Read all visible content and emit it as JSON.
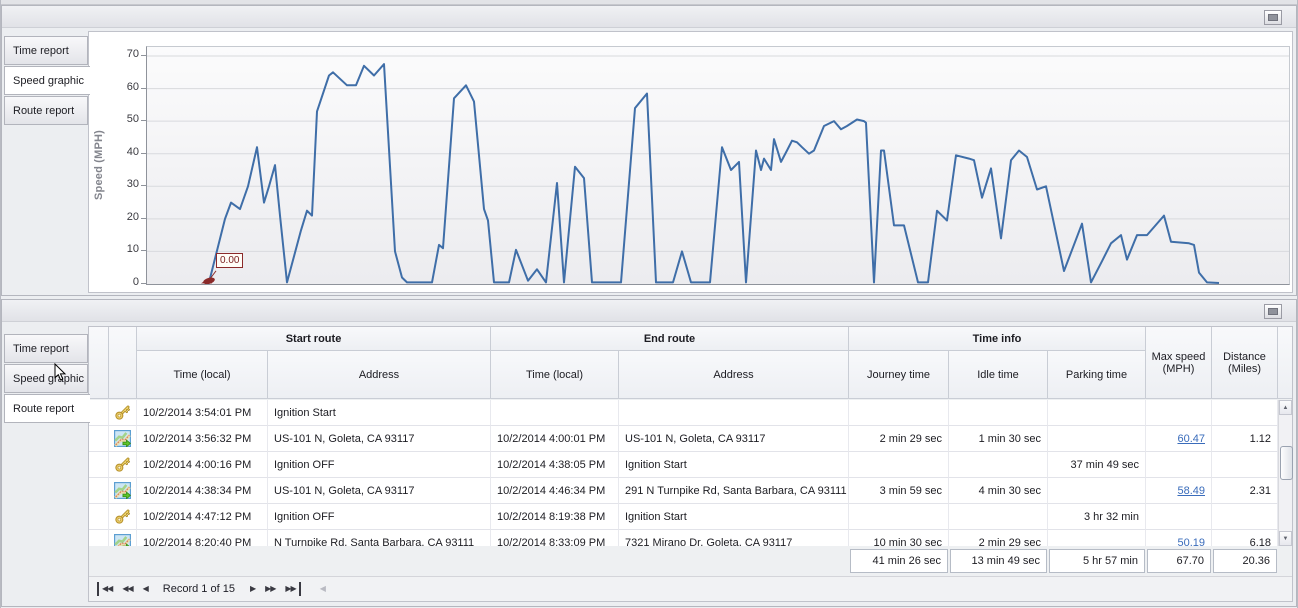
{
  "colors": {
    "line": "#3f6ea8",
    "annotation_red": "#8b2a2a",
    "link_blue": "#3a6cbb",
    "grid": "#d8d9dd",
    "panel_bg": "#eceef1"
  },
  "top_panel": {
    "tabs": [
      {
        "label": "Time report",
        "active": false
      },
      {
        "label": "Speed graphic",
        "active": true
      },
      {
        "label": "Route report",
        "active": false
      }
    ]
  },
  "bottom_panel": {
    "tabs": [
      {
        "label": "Time report",
        "active": false
      },
      {
        "label": "Speed graphic",
        "active": false
      },
      {
        "label": "Route report",
        "active": true
      }
    ]
  },
  "chart_data": {
    "type": "line",
    "title": "",
    "xlabel": "",
    "ylabel": "Speed (MPH)",
    "yticks": [
      0,
      10,
      20,
      30,
      40,
      50,
      60,
      70
    ],
    "ylim": [
      0,
      72.8
    ],
    "x_ticks_visible": false,
    "grid": true,
    "legend": false,
    "line_color": "#3f6ea8",
    "annotation": {
      "text": "0.00",
      "color": "#8b2a2a",
      "at_first_point": true
    },
    "points": [
      [
        62,
        0.5
      ],
      [
        78,
        20
      ],
      [
        84,
        25
      ],
      [
        93,
        23
      ],
      [
        101,
        30
      ],
      [
        110,
        42
      ],
      [
        117,
        25
      ],
      [
        122,
        30
      ],
      [
        128,
        36.5
      ],
      [
        133,
        21
      ],
      [
        140,
        0.5
      ],
      [
        154,
        16.5
      ],
      [
        160,
        22.5
      ],
      [
        165,
        21
      ],
      [
        170,
        53
      ],
      [
        182,
        64
      ],
      [
        186,
        65
      ],
      [
        200,
        61
      ],
      [
        209,
        61
      ],
      [
        217,
        67
      ],
      [
        227,
        64
      ],
      [
        237,
        67.5
      ],
      [
        248,
        10
      ],
      [
        255,
        2
      ],
      [
        260,
        0.5
      ],
      [
        285,
        0.5
      ],
      [
        292,
        12
      ],
      [
        296,
        11
      ],
      [
        307,
        57
      ],
      [
        319,
        61
      ],
      [
        327,
        56
      ],
      [
        337,
        23
      ],
      [
        341,
        19.5
      ],
      [
        347,
        0.5
      ],
      [
        362,
        0.5
      ],
      [
        369,
        10.5
      ],
      [
        381,
        1
      ],
      [
        390,
        4.5
      ],
      [
        399,
        0.5
      ],
      [
        410,
        31
      ],
      [
        417,
        0.5
      ],
      [
        428,
        36
      ],
      [
        437,
        32.5
      ],
      [
        445,
        0.5
      ],
      [
        474,
        0.5
      ],
      [
        488,
        54
      ],
      [
        500,
        58.5
      ],
      [
        509,
        0.5
      ],
      [
        526,
        0.5
      ],
      [
        535,
        10
      ],
      [
        544,
        0.5
      ],
      [
        563,
        0.5
      ],
      [
        575,
        42
      ],
      [
        584,
        35
      ],
      [
        592,
        37.5
      ],
      [
        599,
        0.5
      ],
      [
        609,
        41
      ],
      [
        614,
        35
      ],
      [
        617,
        38.5
      ],
      [
        624,
        35
      ],
      [
        627,
        44.5
      ],
      [
        634,
        37.5
      ],
      [
        640,
        41
      ],
      [
        645,
        44
      ],
      [
        650,
        43.5
      ],
      [
        655,
        42
      ],
      [
        662,
        40
      ],
      [
        667,
        41
      ],
      [
        677,
        48.5
      ],
      [
        687,
        50
      ],
      [
        694,
        47.5
      ],
      [
        700,
        48.5
      ],
      [
        710,
        50.5
      ],
      [
        717,
        50
      ],
      [
        719,
        49.5
      ],
      [
        727,
        0.5
      ],
      [
        734,
        41
      ],
      [
        737,
        41
      ],
      [
        747,
        18
      ],
      [
        757,
        18
      ],
      [
        771,
        0.5
      ],
      [
        781,
        0.5
      ],
      [
        790,
        22.5
      ],
      [
        800,
        19.5
      ],
      [
        809,
        39.5
      ],
      [
        822,
        38.5
      ],
      [
        827,
        38
      ],
      [
        835,
        26.5
      ],
      [
        844,
        35.5
      ],
      [
        854,
        14
      ],
      [
        864,
        38
      ],
      [
        872,
        41
      ],
      [
        880,
        39
      ],
      [
        890,
        29
      ],
      [
        899,
        30
      ],
      [
        917,
        4
      ],
      [
        935,
        18.5
      ],
      [
        944,
        0.5
      ],
      [
        955,
        7
      ],
      [
        964,
        12.5
      ],
      [
        974,
        15
      ],
      [
        980,
        7.5
      ],
      [
        990,
        15
      ],
      [
        1000,
        15
      ],
      [
        1017,
        21
      ],
      [
        1024,
        13
      ],
      [
        1042,
        12.5
      ],
      [
        1047,
        12
      ],
      [
        1052,
        3.5
      ],
      [
        1060,
        0.5
      ],
      [
        1072,
        0.3
      ]
    ]
  },
  "table": {
    "group_headers": {
      "start": "Start route",
      "end": "End route",
      "time_info": "Time info"
    },
    "columns": {
      "start_time": "Time (local)",
      "start_address": "Address",
      "end_time": "Time (local)",
      "end_address": "Address",
      "journey": "Journey time",
      "idle": "Idle time",
      "parking": "Parking time",
      "max_speed": "Max speed (MPH)",
      "distance": "Distance (Miles)"
    },
    "rows": [
      {
        "icon": "key",
        "start_time": "10/2/2014 3:54:01 PM",
        "start_address": "Ignition Start",
        "end_time": "",
        "end_address": "",
        "journey": "",
        "idle": "",
        "parking": "",
        "max_speed": "",
        "max_speed_link": false,
        "distance": ""
      },
      {
        "icon": "route",
        "start_time": "10/2/2014 3:56:32 PM",
        "start_address": "US-101 N, Goleta, CA 93117",
        "end_time": "10/2/2014 4:00:01 PM",
        "end_address": "US-101 N, Goleta, CA 93117",
        "journey": "2 min 29 sec",
        "idle": "1 min 30 sec",
        "parking": "",
        "max_speed": "60.47",
        "max_speed_link": true,
        "distance": "1.12"
      },
      {
        "icon": "key",
        "start_time": "10/2/2014 4:00:16 PM",
        "start_address": "Ignition OFF",
        "end_time": "10/2/2014 4:38:05 PM",
        "end_address": "Ignition Start",
        "journey": "",
        "idle": "",
        "parking": "37 min 49 sec",
        "max_speed": "",
        "max_speed_link": false,
        "distance": ""
      },
      {
        "icon": "route",
        "start_time": "10/2/2014 4:38:34 PM",
        "start_address": "US-101 N, Goleta, CA 93117",
        "end_time": "10/2/2014 4:46:34 PM",
        "end_address": "291 N Turnpike Rd, Santa Barbara, CA 93111",
        "journey": "3 min 59 sec",
        "idle": "4 min 30 sec",
        "parking": "",
        "max_speed": "58.49",
        "max_speed_link": true,
        "distance": "2.31"
      },
      {
        "icon": "key",
        "start_time": "10/2/2014 4:47:12 PM",
        "start_address": "Ignition OFF",
        "end_time": "10/2/2014 8:19:38 PM",
        "end_address": "Ignition Start",
        "journey": "",
        "idle": "",
        "parking": "3 hr 32 min",
        "max_speed": "",
        "max_speed_link": false,
        "distance": ""
      },
      {
        "icon": "route",
        "start_time": "10/2/2014 8:20:40 PM",
        "start_address": "N Turnpike Rd, Santa Barbara, CA 93111",
        "end_time": "10/2/2014 8:33:09 PM",
        "end_address": "7321 Mirano Dr, Goleta, CA 93117",
        "journey": "10 min 30 sec",
        "idle": "2 min 29 sec",
        "parking": "",
        "max_speed": "50.19",
        "max_speed_link": false,
        "distance": "6.18"
      }
    ],
    "summary": {
      "journey": "41 min 26 sec",
      "idle": "13 min 49 sec",
      "parking": "5 hr 57 min",
      "max_speed": "67.70",
      "distance": "20.36"
    }
  },
  "scrollbar": {
    "up": "▲",
    "down": "▼"
  },
  "navigator": {
    "record_text": "Record 1 of 15",
    "left_buttons": [
      {
        "name": "first-record",
        "glyph": "◀◀",
        "bar": "left"
      },
      {
        "name": "prev-page",
        "glyph": "◀◀"
      },
      {
        "name": "prev-record",
        "glyph": "◀"
      }
    ],
    "right_buttons": [
      {
        "name": "next-record",
        "glyph": "▶"
      },
      {
        "name": "next-page",
        "glyph": "▶▶"
      },
      {
        "name": "last-record",
        "glyph": "▶▶",
        "bar": "right"
      },
      {
        "name": "scroll-left",
        "glyph": "◀",
        "disabled": true
      }
    ]
  }
}
